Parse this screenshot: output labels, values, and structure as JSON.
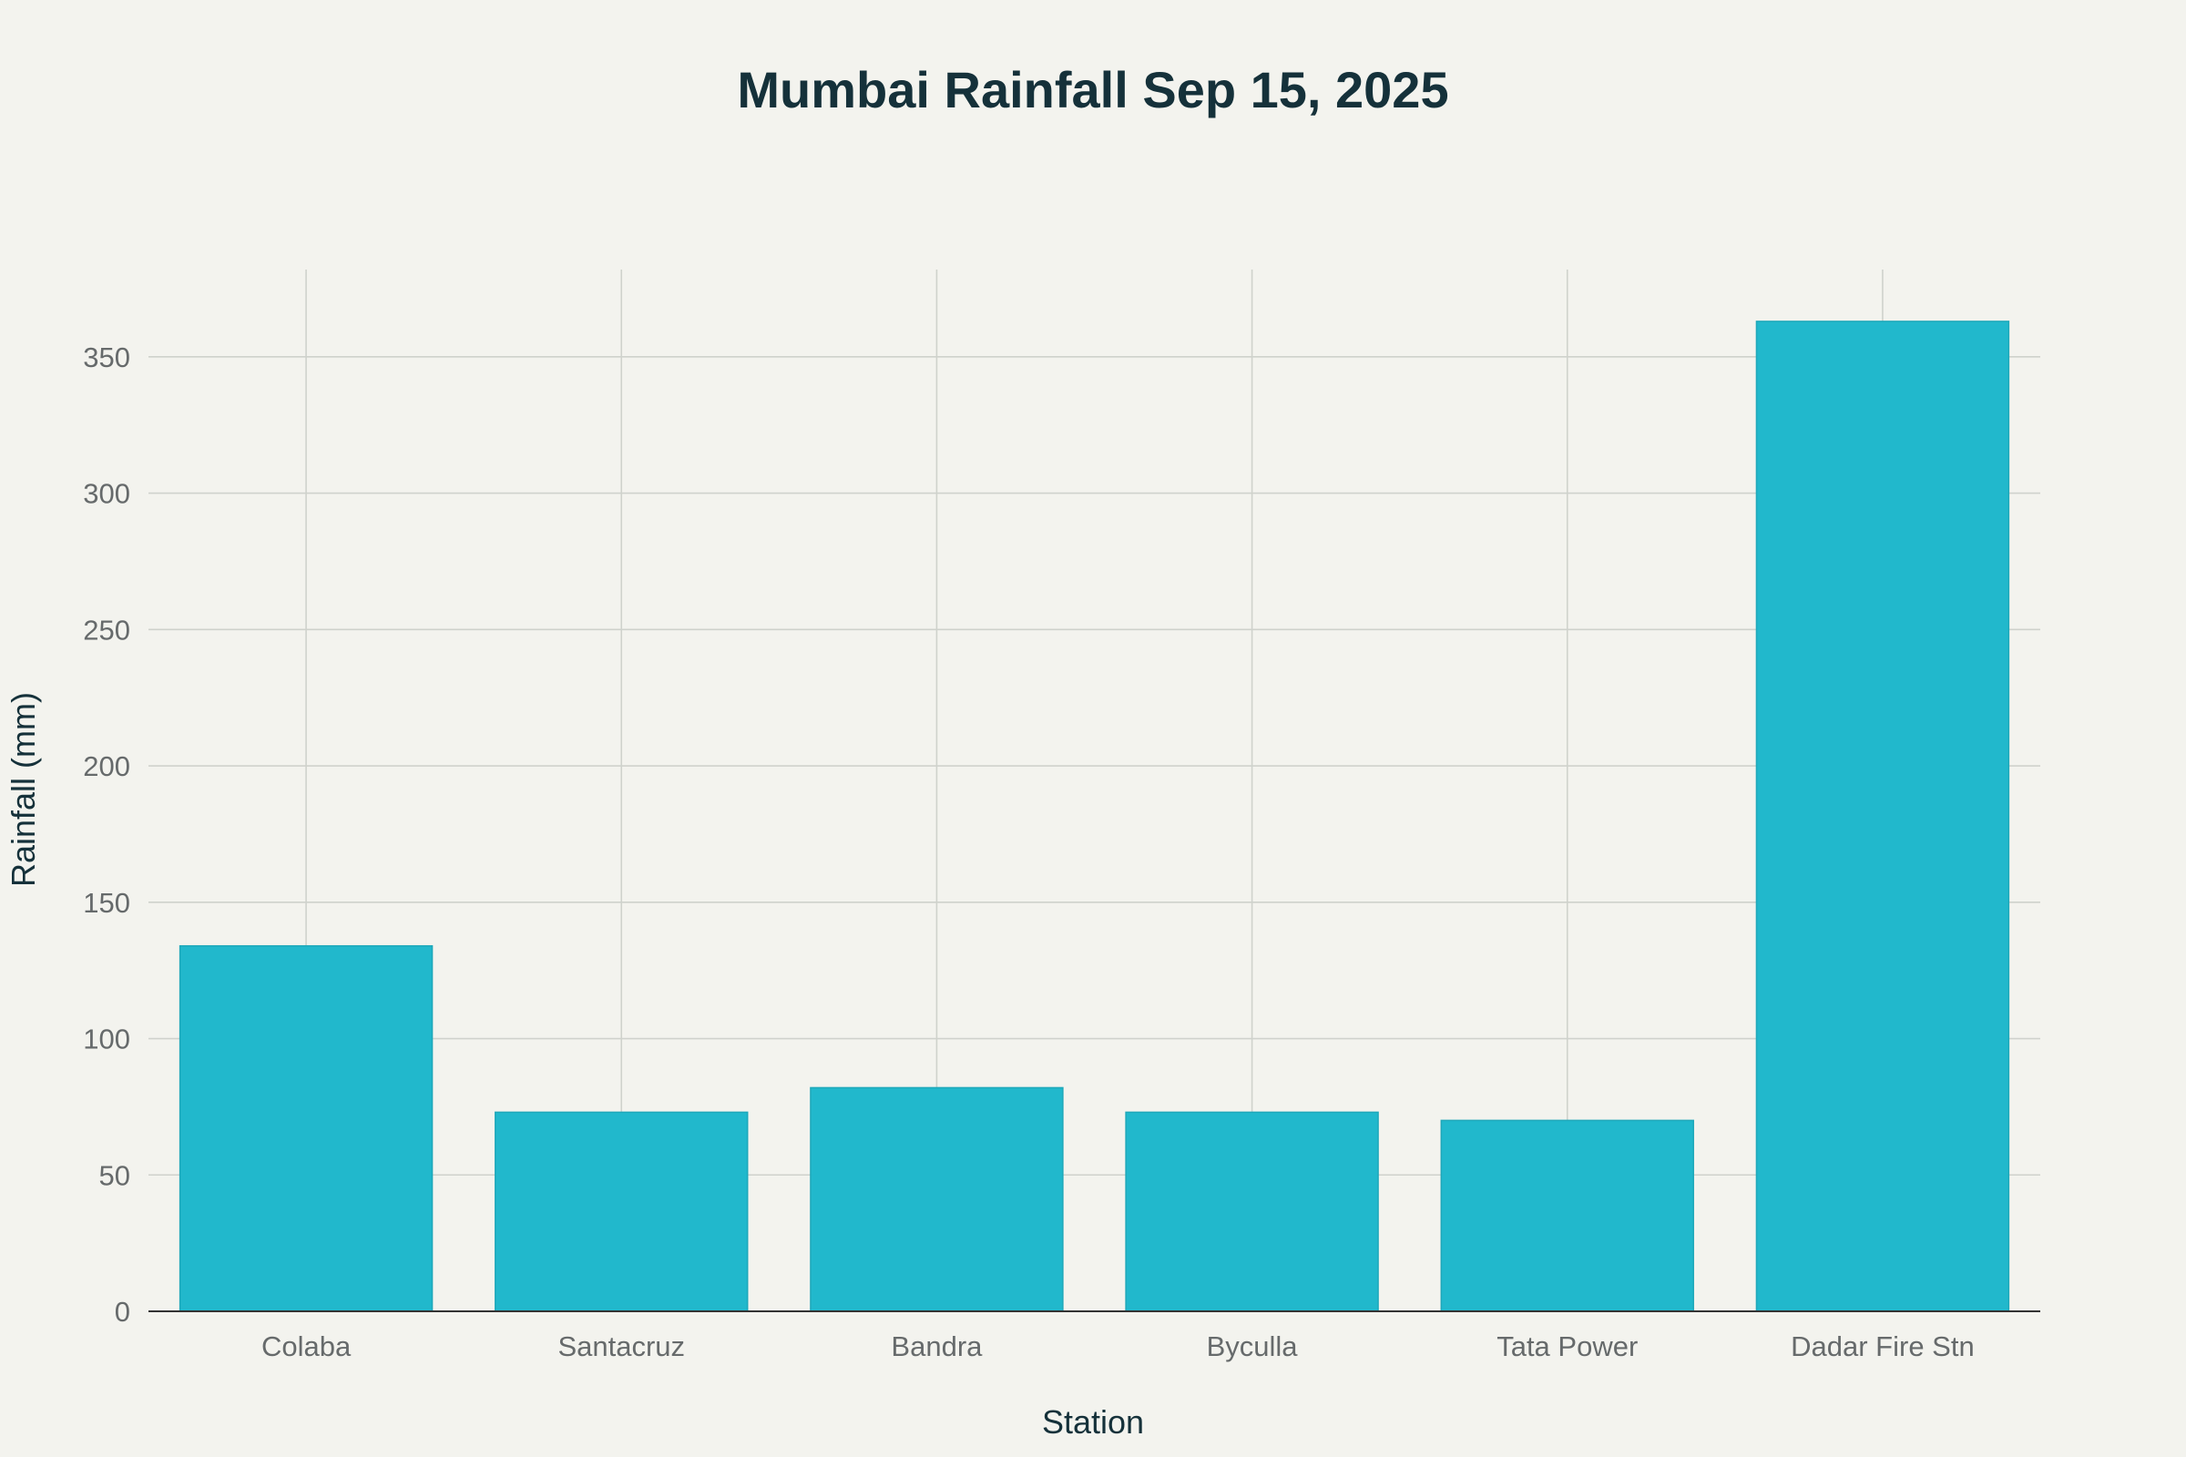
{
  "chart_data": {
    "type": "bar",
    "title": "Mumbai Rainfall Sep 15, 2025",
    "xlabel": "Station",
    "ylabel": "Rainfall (mm)",
    "categories": [
      "Colaba",
      "Santacruz",
      "Bandra",
      "Byculla",
      "Tata Power",
      "Dadar Fire Stn"
    ],
    "values": [
      134,
      73,
      82,
      73,
      70,
      363
    ],
    "ylim": [
      0,
      382
    ],
    "yticks": [
      0,
      50,
      100,
      150,
      200,
      250,
      300,
      350
    ],
    "bar_color": "#21b8cc",
    "grid": true,
    "legend": "none"
  }
}
